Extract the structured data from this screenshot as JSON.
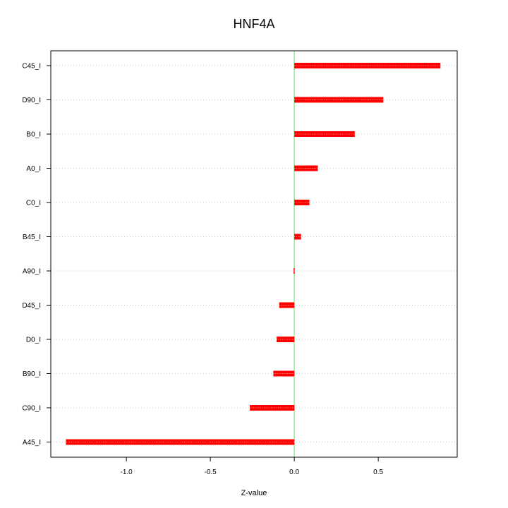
{
  "chart_data": {
    "type": "bar",
    "orientation": "horizontal",
    "title": "HNF4A",
    "xlabel": "Z-value",
    "ylabel": "",
    "categories": [
      "C45_I",
      "D90_I",
      "B0_I",
      "A0_I",
      "C0_I",
      "B45_I",
      "A90_I",
      "D45_I",
      "D0_I",
      "B90_I",
      "C90_I",
      "A45_I"
    ],
    "values": [
      0.87,
      0.53,
      0.36,
      0.14,
      0.09,
      0.04,
      -0.005,
      -0.09,
      -0.105,
      -0.125,
      -0.265,
      -1.36
    ],
    "xlim": [
      -1.45,
      0.97
    ],
    "xticks": [
      -1.0,
      -0.5,
      0.0,
      0.5
    ],
    "xtick_labels": [
      "-1.0",
      "-0.5",
      "0.0",
      "0.5"
    ],
    "grid": "horizontal dotted",
    "colors": {
      "bar": "#ff0000",
      "bar_highlight": "#ff9999",
      "zero_line": "#90ee90",
      "grid": "#c8c8c8",
      "axis": "#000000"
    }
  }
}
